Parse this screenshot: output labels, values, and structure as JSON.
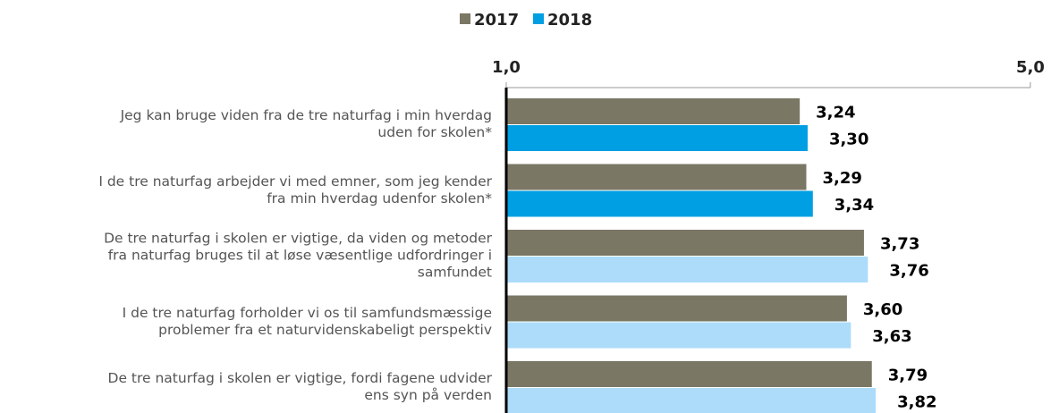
{
  "chart_data": {
    "type": "bar",
    "orientation": "horizontal",
    "categories": [
      "Jeg kan bruge viden fra de tre naturfag i min hverdag\nuden for skolen*",
      "I de tre naturfag arbejder vi med emner, som jeg kender\nfra min hverdag udenfor skolen*",
      "De tre naturfag i skolen er vigtige, da viden og metoder\nfra naturfag bruges til at løse væsentlige udfordringer i\nsamfundet",
      "I de tre naturfag forholder vi os til samfundsmæssige\nproblemer fra et naturvidenskabeligt perspektiv",
      "De tre naturfag i skolen er vigtige, fordi fagene udvider\nens syn på verden"
    ],
    "series": [
      {
        "name": "2017",
        "color": "#7a7765",
        "colors": [
          "#7a7765",
          "#7a7765",
          "#7a7765",
          "#7a7765",
          "#7a7765"
        ],
        "values": [
          3.24,
          3.29,
          3.73,
          3.6,
          3.79
        ],
        "value_labels": [
          "3,24",
          "3,29",
          "3,73",
          "3,60",
          "3,79"
        ]
      },
      {
        "name": "2018",
        "color": "#009fe3",
        "colors": [
          "#009fe3",
          "#009fe3",
          "#acdcfa",
          "#acdcfa",
          "#acdcfa"
        ],
        "values": [
          3.3,
          3.34,
          3.76,
          3.63,
          3.82
        ],
        "value_labels": [
          "3,30",
          "3,34",
          "3,76",
          "3,63",
          "3,82"
        ]
      }
    ],
    "xlim": [
      1,
      5
    ],
    "xticks": [
      {
        "value": 1,
        "label": "1,0"
      },
      {
        "value": 5,
        "label": "5,0"
      }
    ],
    "legend": "top"
  }
}
